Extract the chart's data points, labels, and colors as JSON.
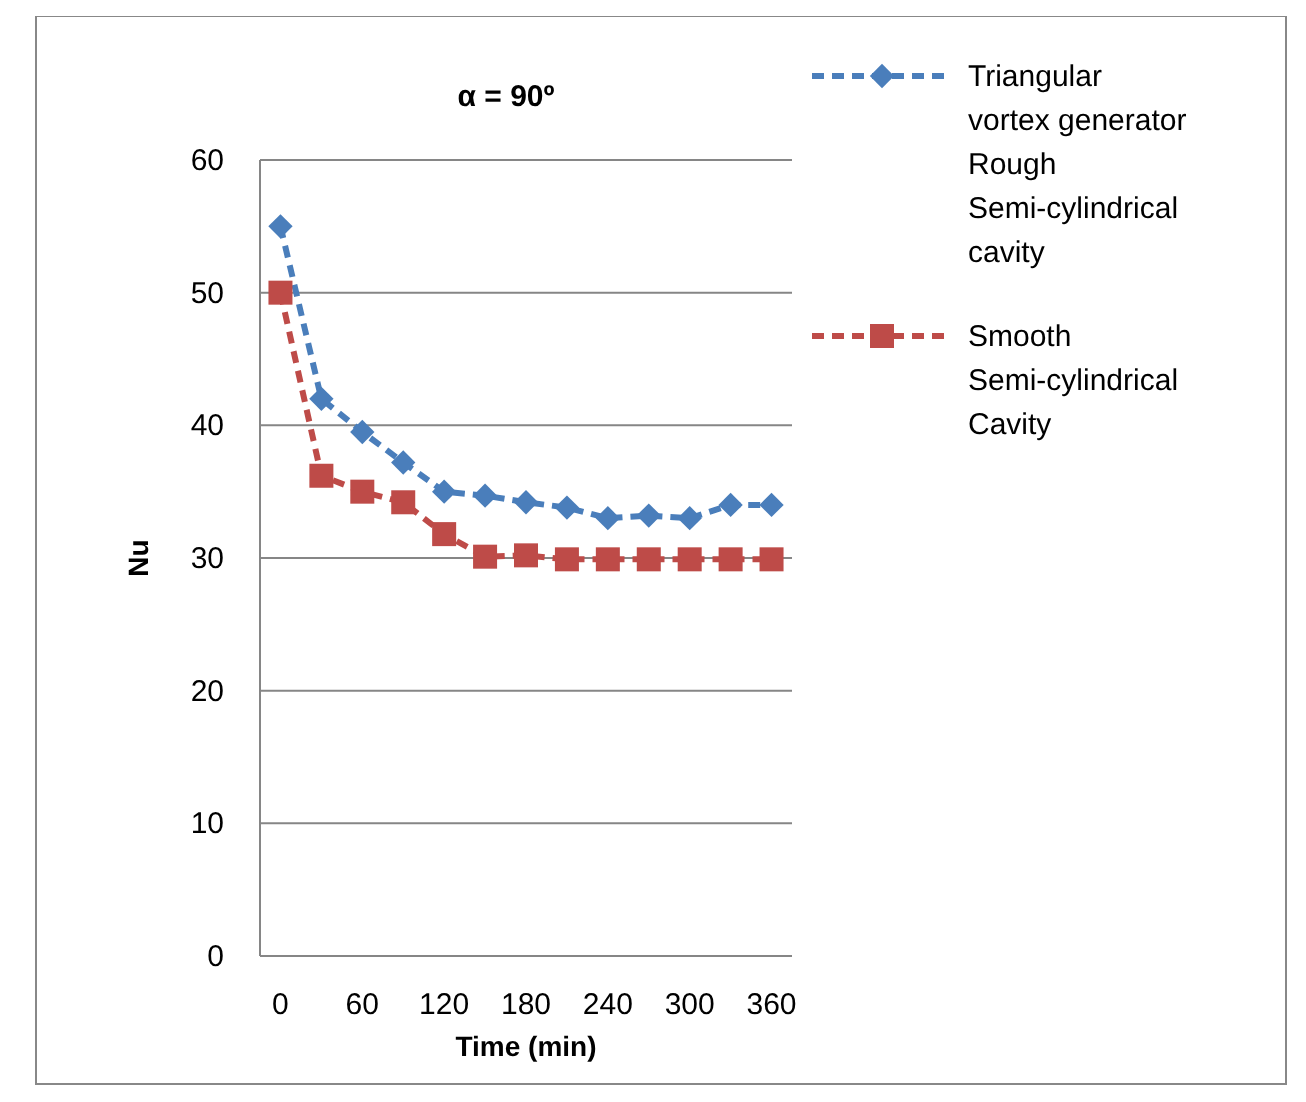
{
  "chart_data": {
    "type": "line",
    "title": "α = 90º",
    "xlabel": "Time (min)",
    "ylabel": "Nu",
    "x": [
      0,
      30,
      60,
      90,
      120,
      150,
      180,
      210,
      240,
      270,
      300,
      330,
      360
    ],
    "series": [
      {
        "name": "Triangular vortex generator Rough Semi-cylindrical cavity",
        "color": "#4a7ebb",
        "marker": "diamond",
        "values": [
          55,
          42,
          39.5,
          37.2,
          35,
          34.7,
          34.2,
          33.8,
          33,
          33.2,
          33,
          34,
          34
        ]
      },
      {
        "name": "Smooth Semi-cylindrical Cavity",
        "color": "#be4b48",
        "marker": "square",
        "values": [
          50,
          36.2,
          35,
          34.2,
          31.8,
          30.1,
          30.2,
          29.9,
          29.9,
          29.9,
          29.9,
          29.9,
          29.9
        ]
      }
    ],
    "xlim": [
      -15,
      375
    ],
    "xticks": [
      0,
      60,
      120,
      180,
      240,
      300,
      360
    ],
    "ylim": [
      0,
      60
    ],
    "yticks": [
      0,
      10,
      20,
      30,
      40,
      50,
      60
    ],
    "grid": "y",
    "legend": "right",
    "line_style": "dashed"
  }
}
